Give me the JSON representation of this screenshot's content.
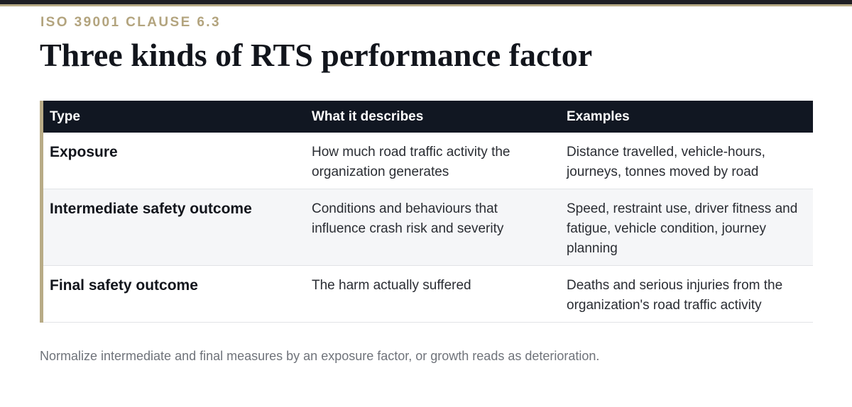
{
  "header": {
    "eyebrow": "ISO 39001 CLAUSE 6.3",
    "title": "Three kinds of RTS performance factor"
  },
  "table": {
    "columns": [
      "Type",
      "What it describes",
      "Examples"
    ],
    "rows": [
      {
        "type": "Exposure",
        "describes": "How much road traffic activity the organization generates",
        "examples": "Distance travelled, vehicle-hours, journeys, tonnes moved by road"
      },
      {
        "type": "Intermediate safety outcome",
        "describes": "Conditions and behaviours that influence crash risk and severity",
        "examples": "Speed, restraint use, driver fitness and fatigue, vehicle condition, journey planning"
      },
      {
        "type": "Final safety outcome",
        "describes": "The harm actually suffered",
        "examples": "Deaths and serious injuries from the organization's road traffic activity"
      }
    ]
  },
  "footnote": "Normalize intermediate and final measures by an exposure factor, or growth reads as deterioration.",
  "colors": {
    "accent_gold": "#b8ab86",
    "header_dark": "#111722",
    "alt_row": "#f5f6f8"
  }
}
